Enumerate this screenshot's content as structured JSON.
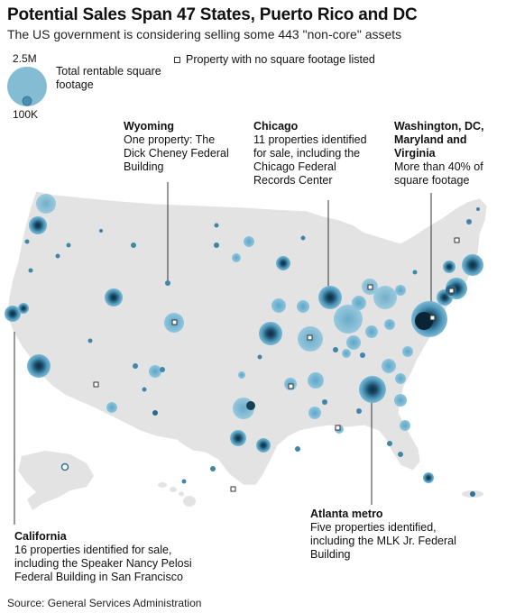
{
  "title": "Potential Sales Span 47 States, Puerto Rico and DC",
  "subtitle": "The US government is considering selling some 443 \"non-core\" assets",
  "legend": {
    "size_max": "2.5M",
    "size_min": "100K",
    "size_description": "Total rentable square footage",
    "no_footage_label": "Property with no square footage listed"
  },
  "annotations": [
    {
      "id": "wyoming",
      "heading": "Wyoming",
      "body": "One property: The Dick Cheney Federal Building"
    },
    {
      "id": "chicago",
      "heading": "Chicago",
      "body": "11 properties identified for sale, including the Chicago Federal Records Center"
    },
    {
      "id": "dc",
      "heading": "Washington, DC, Maryland and Virginia",
      "body": "More than 40% of square footage"
    },
    {
      "id": "california",
      "heading": "California",
      "body": "16 properties identified for sale, including the Speaker Nancy Pelosi Federal Building in San Francisco"
    },
    {
      "id": "atlanta",
      "heading": "Atlanta metro",
      "body": "Five properties identified, including the MLK Jr. Federal Building"
    }
  ],
  "source": "Source: General Services Administration",
  "colors": {
    "land": "#e3e3e3",
    "bubble_fill": "#6fb0cd",
    "bubble_dark": "#0e2c40",
    "bubble_edge": "#2f7394",
    "leader": "#333333"
  },
  "map_data": {
    "region": "United States, Puerto Rico and DC",
    "encoding": "bubble area = total rentable square footage",
    "size_range_sqft": [
      100000,
      2500000
    ]
  }
}
